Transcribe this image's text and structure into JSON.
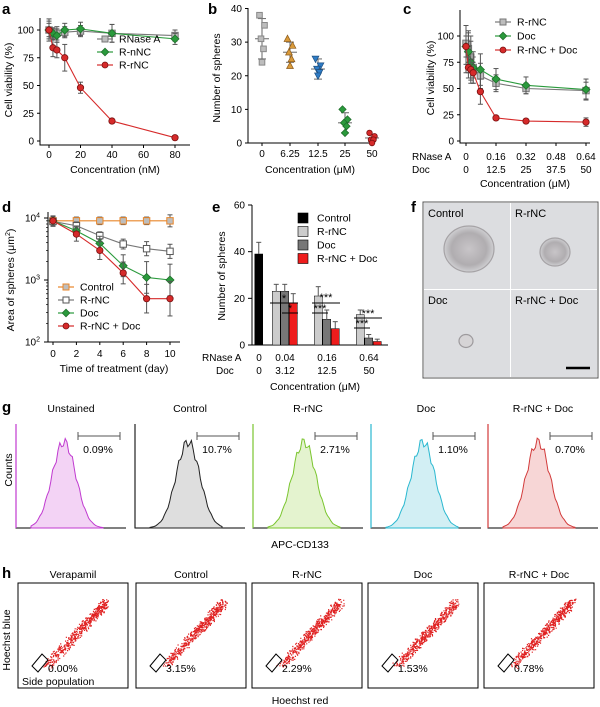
{
  "panels": {
    "a": {
      "label": "a",
      "ylabel": "Cell viability (%)",
      "xlabel": "Concentration (nM)",
      "x_ticks": [
        "0",
        "20",
        "40",
        "60",
        "80"
      ],
      "y_ticks": [
        "0",
        "25",
        "50",
        "75",
        "100"
      ]
    },
    "b": {
      "label": "b",
      "ylabel": "Number of spheres",
      "xlabel": "Concentration (μM)",
      "x_ticks": [
        "0",
        "6.25",
        "12.5",
        "25",
        "50"
      ],
      "y_ticks": [
        "0",
        "10",
        "20",
        "30",
        "40"
      ]
    },
    "c": {
      "label": "c",
      "ylabel": "Cell viability (%)",
      "xlabel": "Concentration (μM)",
      "row1_name": "RNase A",
      "row2_name": "Doc",
      "row1_ticks": [
        "0",
        "0.16",
        "0.32",
        "0.48",
        "0.64"
      ],
      "row2_ticks": [
        "0",
        "12.5",
        "25",
        "37.5",
        "50"
      ],
      "y_ticks": [
        "0",
        "25",
        "50",
        "75",
        "100"
      ]
    },
    "d": {
      "label": "d",
      "ylabel_main": "Area of spheres (μm",
      "ylabel_sup": "2",
      "ylabel_end": ")",
      "xlabel": "Time of treatment (day)",
      "x_ticks": [
        "0",
        "2",
        "4",
        "6",
        "8",
        "10"
      ],
      "y_base": "10",
      "y_exps": [
        "2",
        "3",
        "4"
      ]
    },
    "e": {
      "label": "e",
      "ylabel": "Number of spheres",
      "xlabel": "Concentration (μM)",
      "row1_name": "RNase A",
      "row2_name": "Doc",
      "row1_ticks": [
        "0",
        "0.04",
        "0.16",
        "0.64"
      ],
      "row2_ticks": [
        "0",
        "3.12",
        "12.5",
        "50"
      ],
      "y_ticks": [
        "0",
        "20",
        "40",
        "60"
      ],
      "sig_single": "*",
      "sig_triple": "***"
    },
    "f": {
      "label": "f",
      "tiles": [
        "Control",
        "R-rNC",
        "Doc",
        "R-rNC + Doc"
      ]
    },
    "g": {
      "label": "g",
      "ylabel": "Counts",
      "xlabel": "APC-CD133",
      "titles": [
        "Unstained",
        "Control",
        "R-rNC",
        "Doc",
        "R-rNC + Doc"
      ],
      "percents": [
        "0.09%",
        "10.7%",
        "2.71%",
        "1.10%",
        "0.70%"
      ],
      "colors": [
        "#c03ad0",
        "#222222",
        "#7ac52e",
        "#2ab8d0",
        "#d23a3a"
      ],
      "fills": [
        "#f3d3f5",
        "#dedede",
        "#e4f3cf",
        "#d2eff4",
        "#f7d6d6"
      ]
    },
    "h": {
      "label": "h",
      "ylabel": "Hoechst blue",
      "xlabel": "Hoechst red",
      "titles": [
        "Verapamil",
        "Control",
        "R-rNC",
        "Doc",
        "R-rNC + Doc"
      ],
      "percents": [
        "0.00%",
        "3.15%",
        "2.29%",
        "1.53%",
        "0.78%"
      ],
      "gate_label": "Side population"
    }
  },
  "chart_data": [
    {
      "panel": "a",
      "type": "line",
      "title": "",
      "xlabel": "Concentration (nM)",
      "ylabel": "Cell viability (%)",
      "xlim": [
        0,
        80
      ],
      "ylim": [
        0,
        110
      ],
      "series": [
        {
          "name": "RNase A",
          "color": "#777777",
          "marker": "square",
          "x": [
            0,
            2.5,
            5,
            10,
            20,
            40,
            80
          ],
          "y": [
            100,
            96,
            97,
            98,
            99,
            97,
            95
          ],
          "err": [
            10,
            5,
            6,
            5,
            5,
            8,
            5
          ]
        },
        {
          "name": "R-nNC",
          "color": "#2a9a3c",
          "marker": "diamond",
          "x": [
            0,
            2.5,
            5,
            10,
            20,
            40,
            80
          ],
          "y": [
            100,
            97,
            95,
            100,
            101,
            97,
            92
          ],
          "err": [
            8,
            5,
            6,
            6,
            6,
            8,
            5
          ]
        },
        {
          "name": "R-rNC",
          "color": "#d62a2a",
          "marker": "circle",
          "x": [
            0,
            2.5,
            5,
            10,
            20,
            40,
            80
          ],
          "y": [
            100,
            84,
            82,
            75,
            48,
            18,
            3
          ],
          "err": [
            6,
            8,
            7,
            12,
            5,
            2,
            1
          ]
        }
      ]
    },
    {
      "panel": "b",
      "type": "scatter",
      "title": "",
      "xlabel": "Concentration (μM)",
      "ylabel": "Number of spheres",
      "ylim": [
        0,
        40
      ],
      "categories": [
        "0",
        "6.25",
        "12.5",
        "25",
        "50"
      ],
      "points": [
        [
          38,
          35,
          31,
          28,
          24
        ],
        [
          31,
          29,
          27,
          25,
          23
        ],
        [
          25,
          23,
          22,
          21,
          20
        ],
        [
          10,
          7,
          6,
          5,
          3
        ],
        [
          3,
          2,
          1,
          1,
          0
        ]
      ],
      "means": [
        31,
        27,
        22,
        6,
        1.5
      ],
      "sds": [
        6,
        3,
        3,
        3,
        1
      ],
      "marker_colors": [
        "#888888",
        "#d99a3a",
        "#2e7cc6",
        "#2a9a3c",
        "#d62a2a"
      ],
      "markers": [
        "square",
        "triangle",
        "triangle-down",
        "diamond",
        "circle"
      ]
    },
    {
      "panel": "c",
      "type": "line",
      "title": "",
      "xlabel": "Concentration (μM)",
      "ylabel": "Cell viability (%)",
      "xlim": [
        0,
        50
      ],
      "ylim": [
        0,
        110
      ],
      "x_unit": "Doc concentration (μM)",
      "series": [
        {
          "name": "R-rNC",
          "color": "#777777",
          "marker": "square",
          "x": [
            0,
            1,
            2,
            3,
            6,
            12.5,
            25,
            50
          ],
          "y": [
            93,
            88,
            80,
            70,
            62,
            55,
            50,
            48
          ],
          "err": [
            20,
            15,
            20,
            10,
            12,
            8,
            5,
            8
          ]
        },
        {
          "name": "Doc",
          "color": "#2a9a3c",
          "marker": "diamond",
          "x": [
            0,
            1,
            2,
            3,
            6,
            12.5,
            25,
            50
          ],
          "y": [
            90,
            85,
            75,
            70,
            68,
            59,
            53,
            49
          ],
          "err": [
            25,
            20,
            20,
            15,
            15,
            10,
            8,
            10
          ]
        },
        {
          "name": "R-rNC + Doc",
          "color": "#d62a2a",
          "marker": "circle",
          "x": [
            0,
            1,
            2,
            3,
            6,
            12.5,
            25,
            50
          ],
          "y": [
            90,
            70,
            68,
            65,
            47,
            22,
            19,
            18
          ],
          "err": [
            10,
            10,
            10,
            10,
            12,
            2,
            2,
            4
          ]
        }
      ]
    },
    {
      "panel": "d",
      "type": "line",
      "title": "",
      "xlabel": "Time of treatment (day)",
      "ylabel": "Area of spheres (μm2)",
      "xlim": [
        0,
        10
      ],
      "ylim": [
        100,
        10000
      ],
      "y_scale": "log",
      "series": [
        {
          "name": "Control",
          "color": "#e8862a",
          "marker": "square",
          "x": [
            0,
            2,
            4,
            6,
            8,
            10
          ],
          "y": [
            9000,
            9000,
            9000,
            9000,
            9000,
            9000
          ],
          "err_factor": [
            1.15,
            1.15,
            1.15,
            1.15,
            1.15,
            1.25
          ]
        },
        {
          "name": "R-rNC",
          "color": "#777777",
          "marker": "square-open",
          "x": [
            0,
            2,
            4,
            6,
            8,
            10
          ],
          "y": [
            8800,
            7500,
            5200,
            3800,
            3200,
            2900
          ],
          "err_factor": [
            1.2,
            1.15,
            1.15,
            1.2,
            1.3,
            1.3
          ]
        },
        {
          "name": "Doc",
          "color": "#2a9a3c",
          "marker": "diamond",
          "x": [
            0,
            2,
            4,
            6,
            8,
            10
          ],
          "y": [
            9000,
            6200,
            3900,
            1700,
            1100,
            1000
          ],
          "err_factor": [
            1.2,
            1.2,
            1.3,
            1.5,
            1.8,
            1.8
          ]
        },
        {
          "name": "R-rNC + Doc",
          "color": "#d62a2a",
          "marker": "circle",
          "x": [
            0,
            2,
            4,
            6,
            8,
            10
          ],
          "y": [
            9000,
            5500,
            3000,
            1300,
            500,
            500
          ],
          "err_factor": [
            1.2,
            1.3,
            1.4,
            1.5,
            1.7,
            1.9
          ]
        }
      ]
    },
    {
      "panel": "e",
      "type": "bar",
      "title": "",
      "xlabel": "Concentration (μM)",
      "ylabel": "Number of spheres",
      "ylim": [
        0,
        60
      ],
      "categories": [
        "0 / 0",
        "0.04 / 3.12",
        "0.16 / 12.5",
        "0.64 / 50"
      ],
      "series": [
        {
          "name": "Control",
          "color": "#000000",
          "values": [
            39,
            null,
            null,
            null
          ],
          "err": [
            5,
            null,
            null,
            null
          ]
        },
        {
          "name": "R-rNC",
          "color": "#cccccc",
          "values": [
            null,
            23,
            21,
            13
          ],
          "err": [
            null,
            3,
            4,
            2
          ]
        },
        {
          "name": "Doc",
          "color": "#777777",
          "values": [
            null,
            23,
            11,
            3
          ],
          "err": [
            null,
            3,
            4,
            1.5
          ]
        },
        {
          "name": "R-rNC + Doc",
          "color": "#ee1c1c",
          "values": [
            null,
            18,
            7,
            1.5
          ],
          "err": [
            null,
            4,
            3,
            1
          ]
        }
      ]
    }
  ],
  "legends": {
    "a": [
      "RNase A",
      "R-nNC",
      "R-rNC"
    ],
    "c": [
      "R-rNC",
      "Doc",
      "R-rNC + Doc"
    ],
    "d": [
      "Control",
      "R-rNC",
      "Doc",
      "R-rNC + Doc"
    ],
    "e": [
      "Control",
      "R-rNC",
      "Doc",
      "R-rNC + Doc"
    ]
  }
}
